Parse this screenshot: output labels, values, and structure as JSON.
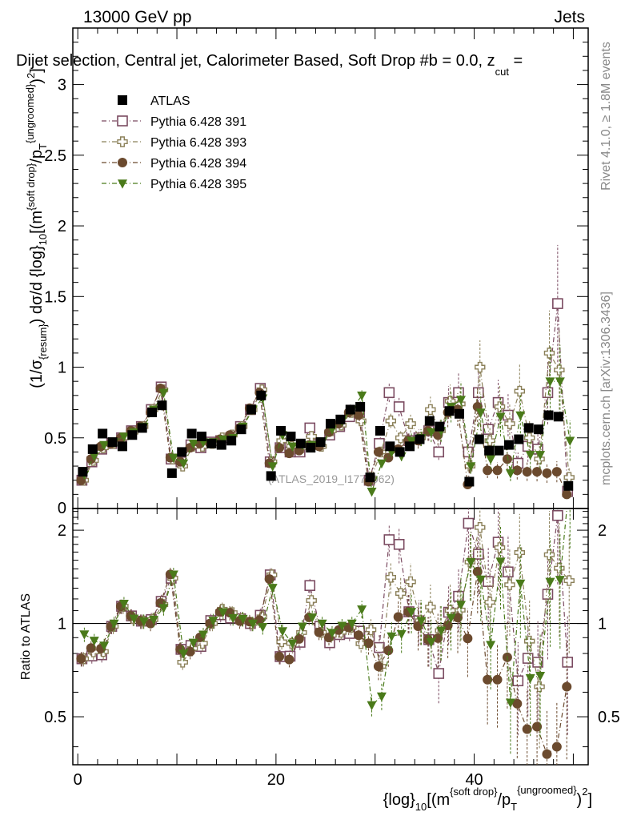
{
  "header": {
    "energy_label": "13000 GeV pp",
    "category_label": "Jets",
    "plot_title": "Dijet selection, Central jet, Calorimeter Based, Soft Drop #b = 0.0, z_cut =",
    "title_main": "Dijet selection, Central jet, Calorimeter Based, Soft Drop #b = 0.0, z",
    "title_sub": "cut",
    "title_tail": " ="
  },
  "side": {
    "rivet_label": "Rivet 4.1.0, ≥ 1.8M events",
    "mcplots_label": "mcplots.cern.ch [arXiv:1306.3436]"
  },
  "watermark": "(ATLAS_2019_I1772062)",
  "colors": {
    "data": "#000000",
    "s391": "#7b4b61",
    "s393": "#8b8059",
    "s394": "#6b4a2e",
    "s395": "#4a7a1a"
  },
  "icons": {
    "ATLAS": "filled-square",
    "Pythia 6.428 391": "open-square",
    "Pythia 6.428 393": "open-cross",
    "Pythia 6.428 394": "filled-circle",
    "Pythia 6.428 395": "filled-triangle-down"
  },
  "chart_data": {
    "type": "scatter",
    "title": "Dijet selection, Central jet, Calorimeter Based, Soft Drop #b = 0.0, z_cut =",
    "ylabel": "(1/σ_{resum}) dσ/d {log}_{10}[(m^{soft drop}/p_T^{ungroomed})^2]",
    "ratio_ylabel": "Ratio to ATLAS",
    "xlabel": "{log}_{10}[(m^{soft drop}/p_T^{ungroomed})^2]",
    "xlim": [
      -0.5,
      51.5
    ],
    "ylim": [
      0,
      3.4
    ],
    "ratio_ylim": [
      0.35,
      2.35
    ],
    "x_ticks": [
      0,
      20,
      40
    ],
    "y_ticks": [
      0.5,
      1,
      1.5,
      2,
      2.5,
      3
    ],
    "y_tick_labels": [
      "0.5",
      "1",
      "1.5",
      "2",
      "2.5",
      "3"
    ],
    "y_bottom_label": "0",
    "ratio_ticks": [
      0.5,
      1,
      2
    ],
    "ratio_tick_labels": [
      "0.5",
      "1",
      "2"
    ],
    "legend_position": "top-left",
    "x": [
      0.5,
      1.5,
      2.5,
      3.5,
      4.5,
      5.5,
      6.5,
      7.5,
      8.5,
      9.5,
      10.5,
      11.5,
      12.5,
      13.5,
      14.5,
      15.5,
      16.5,
      17.5,
      18.5,
      19.5,
      20.5,
      21.5,
      22.5,
      23.5,
      24.5,
      25.5,
      26.5,
      27.5,
      28.5,
      29.5,
      30.5,
      31.5,
      32.5,
      33.5,
      34.5,
      35.5,
      36.5,
      37.5,
      38.5,
      39.5,
      40.5,
      41.5,
      42.5,
      43.5,
      44.5,
      45.5,
      46.5,
      47.5,
      48.5,
      49.5
    ],
    "series": [
      {
        "name": "ATLAS",
        "key": "data",
        "values": [
          0.26,
          0.42,
          0.53,
          0.47,
          0.44,
          0.52,
          0.57,
          0.68,
          0.73,
          0.25,
          0.4,
          0.53,
          0.51,
          0.46,
          0.45,
          0.48,
          0.56,
          0.7,
          0.8,
          0.23,
          0.55,
          0.51,
          0.46,
          0.43,
          0.47,
          0.6,
          0.63,
          0.7,
          0.72,
          0.22,
          0.55,
          0.44,
          0.4,
          0.44,
          0.49,
          0.62,
          0.58,
          0.69,
          0.67,
          0.19,
          0.49,
          0.41,
          0.41,
          0.45,
          0.49,
          0.57,
          0.56,
          0.66,
          0.65,
          0.16
        ]
      },
      {
        "name": "Pythia 6.428 391",
        "key": "s391",
        "values": [
          0.2,
          0.33,
          0.42,
          0.46,
          0.5,
          0.55,
          0.58,
          0.7,
          0.86,
          0.35,
          0.33,
          0.45,
          0.43,
          0.47,
          0.48,
          0.5,
          0.58,
          0.7,
          0.85,
          0.33,
          0.43,
          0.4,
          0.4,
          0.57,
          0.46,
          0.52,
          0.58,
          0.65,
          0.68,
          0.2,
          0.46,
          0.82,
          0.72,
          0.48,
          0.5,
          0.55,
          0.4,
          0.75,
          0.82,
          0.4,
          0.82,
          0.56,
          0.75,
          0.66,
          0.32,
          0.44,
          0.42,
          0.82,
          1.45,
          0.12
        ]
      },
      {
        "name": "Pythia 6.428 393",
        "key": "s393",
        "values": [
          0.2,
          0.34,
          0.43,
          0.46,
          0.5,
          0.54,
          0.58,
          0.7,
          0.84,
          0.35,
          0.3,
          0.44,
          0.44,
          0.46,
          0.5,
          0.52,
          0.58,
          0.7,
          0.84,
          0.33,
          0.48,
          0.44,
          0.43,
          0.51,
          0.44,
          0.55,
          0.59,
          0.68,
          0.62,
          0.21,
          0.4,
          0.62,
          0.5,
          0.6,
          0.5,
          0.7,
          0.55,
          0.76,
          0.74,
          0.3,
          1.0,
          0.48,
          0.72,
          0.6,
          0.83,
          0.5,
          0.35,
          1.1,
          0.98,
          0.22
        ]
      },
      {
        "name": "Pythia 6.428 394",
        "key": "s394",
        "values": [
          0.2,
          0.35,
          0.44,
          0.46,
          0.5,
          0.55,
          0.58,
          0.68,
          0.85,
          0.36,
          0.33,
          0.43,
          0.46,
          0.46,
          0.49,
          0.52,
          0.57,
          0.71,
          0.82,
          0.32,
          0.43,
          0.39,
          0.41,
          0.45,
          0.44,
          0.54,
          0.6,
          0.68,
          0.66,
          0.19,
          0.4,
          0.36,
          0.42,
          0.48,
          0.48,
          0.55,
          0.52,
          0.68,
          0.7,
          0.17,
          0.72,
          0.27,
          0.27,
          0.35,
          0.27,
          0.26,
          0.26,
          0.25,
          0.26,
          0.1
        ]
      },
      {
        "name": "Pythia 6.428 395",
        "key": "s395",
        "values": [
          0.24,
          0.37,
          0.45,
          0.47,
          0.51,
          0.54,
          0.58,
          0.7,
          0.82,
          0.36,
          0.32,
          0.46,
          0.47,
          0.47,
          0.49,
          0.5,
          0.58,
          0.7,
          0.78,
          0.3,
          0.52,
          0.44,
          0.45,
          0.45,
          0.47,
          0.56,
          0.62,
          0.7,
          0.8,
          0.12,
          0.32,
          0.4,
          0.37,
          0.48,
          0.5,
          0.54,
          0.55,
          0.72,
          0.77,
          0.3,
          0.68,
          0.35,
          0.65,
          0.25,
          0.66,
          0.38,
          0.38,
          0.9,
          0.9,
          0.48
        ]
      }
    ]
  }
}
